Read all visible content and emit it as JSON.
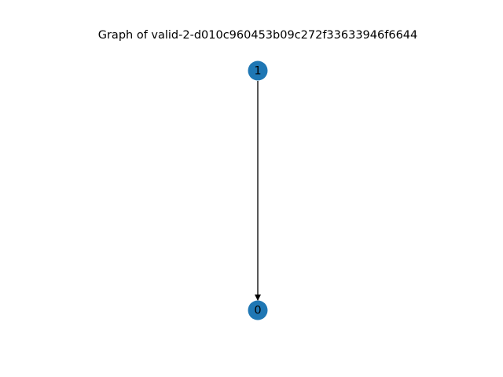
{
  "title": "Graph of valid-2-d010c960453b09c272f33633946f6644",
  "graph": {
    "directed": true,
    "node_color": "#1f77b4",
    "edge_color": "#000000",
    "nodes": [
      {
        "id": "1",
        "label": "1"
      },
      {
        "id": "0",
        "label": "0"
      }
    ],
    "edges": [
      {
        "source": "1",
        "target": "0"
      }
    ]
  }
}
